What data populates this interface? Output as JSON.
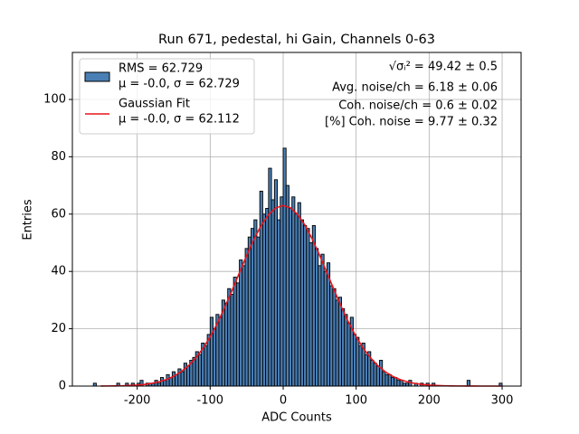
{
  "chart_data": {
    "type": "histogram",
    "title": "Run 671, pedestal, hi Gain, Channels 0-63",
    "xlabel": "ADC Counts",
    "ylabel": "Entries",
    "bins": [
      -260,
      -256,
      -252,
      -248,
      -244,
      -240,
      -236,
      -232,
      -228,
      -224,
      -220,
      -216,
      -212,
      -208,
      -204,
      -200,
      -196,
      -192,
      -188,
      -184,
      -180,
      -176,
      -172,
      -168,
      -164,
      -160,
      -156,
      -152,
      -148,
      -144,
      -140,
      -136,
      -132,
      -128,
      -124,
      -120,
      -116,
      -112,
      -108,
      -104,
      -100,
      -96,
      -92,
      -88,
      -84,
      -80,
      -76,
      -72,
      -68,
      -64,
      -60,
      -56,
      -52,
      -48,
      -44,
      -40,
      -36,
      -32,
      -28,
      -24,
      -20,
      -16,
      -12,
      -8,
      -4,
      0,
      4,
      8,
      12,
      16,
      20,
      24,
      28,
      32,
      36,
      40,
      44,
      48,
      52,
      56,
      60,
      64,
      68,
      72,
      76,
      80,
      84,
      88,
      92,
      96,
      100,
      104,
      108,
      112,
      116,
      120,
      124,
      128,
      132,
      136,
      140,
      144,
      148,
      152,
      156,
      160,
      164,
      168,
      172,
      176,
      180,
      184,
      188,
      192,
      196,
      200,
      204,
      208,
      212,
      216,
      220,
      224,
      228,
      232,
      236,
      240,
      244,
      248,
      252,
      256,
      260,
      264,
      268,
      272,
      276,
      280,
      284,
      288,
      292,
      296,
      300
    ],
    "counts": [
      1,
      0,
      0,
      0,
      0,
      0,
      0,
      0,
      1,
      0,
      0,
      1,
      0,
      1,
      0,
      1,
      2,
      0,
      1,
      1,
      1,
      2,
      1,
      3,
      2,
      4,
      3,
      5,
      4,
      6,
      5,
      8,
      7,
      9,
      10,
      12,
      11,
      15,
      14,
      18,
      24,
      20,
      25,
      24,
      30,
      29,
      34,
      32,
      38,
      36,
      44,
      42,
      48,
      52,
      55,
      58,
      52,
      68,
      60,
      62,
      76,
      65,
      72,
      58,
      66,
      83,
      70,
      62,
      66,
      60,
      64,
      58,
      56,
      55,
      50,
      56,
      48,
      42,
      46,
      40,
      43,
      35,
      34,
      30,
      31,
      27,
      25,
      22,
      24,
      18,
      17,
      14,
      15,
      11,
      12,
      9,
      8,
      7,
      9,
      5,
      4,
      4,
      3,
      3,
      2,
      2,
      1,
      1,
      2,
      0,
      1,
      0,
      1,
      0,
      1,
      0,
      1,
      0,
      0,
      0,
      0,
      0,
      0,
      0,
      0,
      0,
      0,
      0,
      2,
      0,
      0,
      0,
      0,
      0,
      0,
      0,
      0,
      0,
      0,
      1
    ],
    "hist_name": [
      "RMS = 62.729",
      "μ = -0.0, σ = 62.729"
    ],
    "hist_color": "#4a7fb5",
    "fit": {
      "name": [
        "Gaussian Fit",
        "μ = -0.0, σ = 62.112"
      ],
      "color": "#e8141c",
      "x": [
        -250,
        -240,
        -230,
        -220,
        -210,
        -200,
        -190,
        -180,
        -170,
        -160,
        -150,
        -140,
        -130,
        -120,
        -110,
        -100,
        -90,
        -80,
        -70,
        -60,
        -50,
        -40,
        -30,
        -20,
        -10,
        0,
        10,
        20,
        30,
        40,
        50,
        60,
        70,
        80,
        90,
        100,
        110,
        120,
        130,
        140,
        150,
        160,
        170,
        180,
        190,
        200,
        210,
        220,
        230,
        240,
        250,
        260,
        270,
        280,
        290,
        300
      ],
      "values": [
        0.02,
        0.04,
        0.07,
        0.12,
        0.21,
        0.35,
        0.58,
        0.95,
        1.49,
        2.28,
        3.41,
        4.97,
        7.05,
        9.75,
        13.1,
        17.2,
        22.0,
        27.5,
        33.4,
        39.5,
        45.6,
        51.2,
        56.1,
        59.8,
        62.2,
        63,
        62.2,
        59.8,
        56.1,
        51.2,
        45.6,
        39.5,
        33.4,
        27.5,
        22.0,
        17.2,
        13.1,
        9.75,
        7.05,
        4.97,
        3.41,
        2.28,
        1.49,
        0.95,
        0.58,
        0.35,
        0.21,
        0.12,
        0.07,
        0.04,
        0.02,
        0.01,
        0,
        0,
        0,
        0
      ]
    },
    "annotations": [
      "√σᵢ² = 49.42 ± 0.5",
      "Avg. noise/ch = 6.18 ± 0.06",
      "Coh. noise/ch = 0.6 ± 0.02",
      "[%] Coh. noise = 9.77 ± 0.32"
    ],
    "xlim": [
      -288.8,
      326
    ],
    "ylim": [
      0,
      116.4
    ],
    "xticks": [
      -200,
      -100,
      0,
      100,
      200,
      300
    ],
    "yticks": [
      0,
      20,
      40,
      60,
      80,
      100
    ],
    "grid": true,
    "legend": "upper left"
  }
}
